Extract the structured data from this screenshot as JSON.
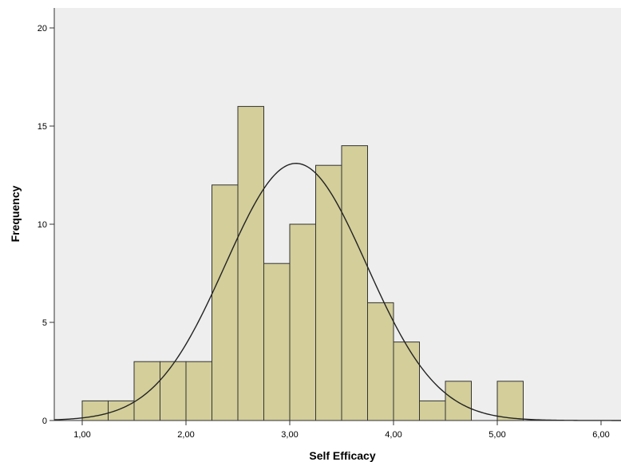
{
  "chart_data": {
    "type": "bar",
    "subtype": "histogram",
    "xlabel": "Self Efficacy",
    "ylabel": "Frequency",
    "xlim": [
      0.75,
      6.2
    ],
    "ylim": [
      0,
      22
    ],
    "x_ticks": [
      1.0,
      2.0,
      3.0,
      4.0,
      5.0,
      6.0
    ],
    "x_tick_labels": [
      "1,00",
      "2,00",
      "3,00",
      "4,00",
      "5,00",
      "6,00"
    ],
    "y_ticks": [
      0,
      5,
      10,
      15,
      20
    ],
    "y_tick_labels": [
      "0",
      "5",
      "10",
      "15",
      "20"
    ],
    "bin_width": 0.25,
    "bins": [
      {
        "start": 1.0,
        "end": 1.25,
        "count": 1
      },
      {
        "start": 1.25,
        "end": 1.5,
        "count": 1
      },
      {
        "start": 1.5,
        "end": 1.75,
        "count": 3
      },
      {
        "start": 1.75,
        "end": 2.0,
        "count": 3
      },
      {
        "start": 2.0,
        "end": 2.25,
        "count": 3
      },
      {
        "start": 2.25,
        "end": 2.5,
        "count": 12
      },
      {
        "start": 2.5,
        "end": 2.75,
        "count": 16
      },
      {
        "start": 2.75,
        "end": 3.0,
        "count": 8
      },
      {
        "start": 3.0,
        "end": 3.25,
        "count": 10
      },
      {
        "start": 3.25,
        "end": 3.5,
        "count": 13
      },
      {
        "start": 3.5,
        "end": 3.75,
        "count": 14
      },
      {
        "start": 3.75,
        "end": 4.0,
        "count": 6
      },
      {
        "start": 4.0,
        "end": 4.25,
        "count": 4
      },
      {
        "start": 4.25,
        "end": 4.5,
        "count": 1
      },
      {
        "start": 4.5,
        "end": 4.75,
        "count": 2
      },
      {
        "start": 5.0,
        "end": 5.25,
        "count": 2
      }
    ],
    "normal_curve": {
      "mean": 3.06,
      "sd": 0.68,
      "peak": 13.1
    },
    "grid": false,
    "colors": {
      "bar_fill": "#d3ce9a",
      "bar_stroke": "#333333",
      "plot_background": "#eeeeee",
      "curve": "#222222"
    }
  }
}
